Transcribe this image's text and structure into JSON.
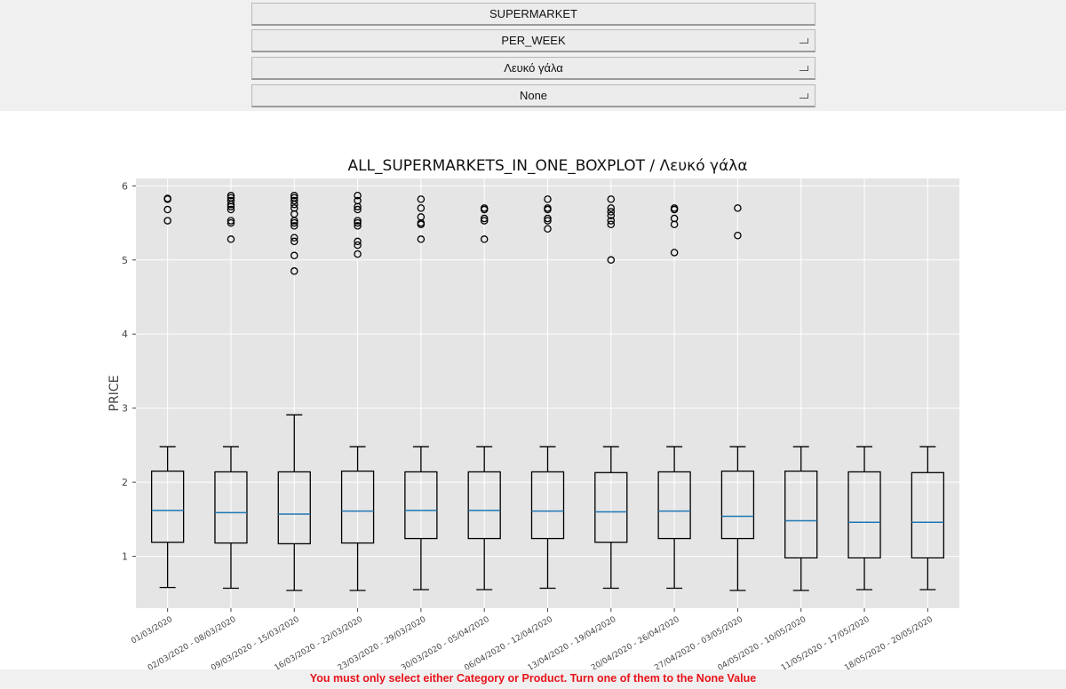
{
  "controls": {
    "supermarket_button": "SUPERMARKET",
    "period_select": "PER_WEEK",
    "product_select": "Λευκό γάλα",
    "category_select": "None"
  },
  "status": {
    "message": "You must only select either Category or Product. Turn one of them to the None Value"
  },
  "chart_data": {
    "type": "boxplot",
    "title": "ALL_SUPERMARKETS_IN_ONE_BOXPLOT / Λευκό γάλα",
    "xlabel": "",
    "ylabel": "PRICE",
    "ylim": [
      0.3,
      6.1
    ],
    "yticks": [
      1,
      2,
      3,
      4,
      5,
      6
    ],
    "grid": true,
    "box_color": "#000000",
    "median_color": "#1f77b4",
    "background_color": "#e5e5e5",
    "categories": [
      "01/03/2020",
      "02/03/2020 - 08/03/2020",
      "09/03/2020 - 15/03/2020",
      "16/03/2020 - 22/03/2020",
      "23/03/2020 - 29/03/2020",
      "30/03/2020 - 05/04/2020",
      "06/04/2020 - 12/04/2020",
      "13/04/2020 - 19/04/2020",
      "20/04/2020 - 26/04/2020",
      "27/04/2020 - 03/05/2020",
      "04/05/2020 - 10/05/2020",
      "11/05/2020 - 17/05/2020",
      "18/05/2020 - 20/05/2020"
    ],
    "boxes": [
      {
        "whislo": 0.58,
        "q1": 1.19,
        "med": 1.62,
        "q3": 2.15,
        "whishi": 2.48,
        "fliers": [
          5.83,
          5.82,
          5.68,
          5.53
        ]
      },
      {
        "whislo": 0.57,
        "q1": 1.18,
        "med": 1.59,
        "q3": 2.14,
        "whishi": 2.48,
        "fliers": [
          5.87,
          5.84,
          5.8,
          5.75,
          5.72,
          5.68,
          5.53,
          5.5,
          5.28
        ]
      },
      {
        "whislo": 0.54,
        "q1": 1.17,
        "med": 1.57,
        "q3": 2.14,
        "whishi": 2.91,
        "fliers": [
          5.87,
          5.84,
          5.8,
          5.75,
          5.7,
          5.62,
          5.53,
          5.5,
          5.46,
          5.3,
          5.25,
          5.06,
          4.85
        ]
      },
      {
        "whislo": 0.54,
        "q1": 1.18,
        "med": 1.61,
        "q3": 2.15,
        "whishi": 2.48,
        "fliers": [
          5.87,
          5.8,
          5.72,
          5.68,
          5.53,
          5.5,
          5.46,
          5.25,
          5.2,
          5.08
        ]
      },
      {
        "whislo": 0.55,
        "q1": 1.24,
        "med": 1.62,
        "q3": 2.14,
        "whishi": 2.48,
        "fliers": [
          5.82,
          5.7,
          5.58,
          5.5,
          5.48,
          5.28
        ]
      },
      {
        "whislo": 0.55,
        "q1": 1.24,
        "med": 1.62,
        "q3": 2.14,
        "whishi": 2.48,
        "fliers": [
          5.7,
          5.68,
          5.56,
          5.53,
          5.28
        ]
      },
      {
        "whislo": 0.57,
        "q1": 1.24,
        "med": 1.61,
        "q3": 2.14,
        "whishi": 2.48,
        "fliers": [
          5.82,
          5.7,
          5.68,
          5.56,
          5.53,
          5.42
        ]
      },
      {
        "whislo": 0.57,
        "q1": 1.19,
        "med": 1.6,
        "q3": 2.13,
        "whishi": 2.48,
        "fliers": [
          5.82,
          5.7,
          5.65,
          5.6,
          5.53,
          5.48,
          5.0
        ]
      },
      {
        "whislo": 0.57,
        "q1": 1.24,
        "med": 1.61,
        "q3": 2.14,
        "whishi": 2.48,
        "fliers": [
          5.7,
          5.68,
          5.56,
          5.48,
          5.1
        ]
      },
      {
        "whislo": 0.54,
        "q1": 1.24,
        "med": 1.54,
        "q3": 2.15,
        "whishi": 2.48,
        "fliers": [
          5.7,
          5.33
        ]
      },
      {
        "whislo": 0.54,
        "q1": 0.98,
        "med": 1.48,
        "q3": 2.15,
        "whishi": 2.48,
        "fliers": []
      },
      {
        "whislo": 0.55,
        "q1": 0.98,
        "med": 1.46,
        "q3": 2.14,
        "whishi": 2.48,
        "fliers": []
      },
      {
        "whislo": 0.55,
        "q1": 0.98,
        "med": 1.46,
        "q3": 2.13,
        "whishi": 2.48,
        "fliers": []
      }
    ]
  }
}
